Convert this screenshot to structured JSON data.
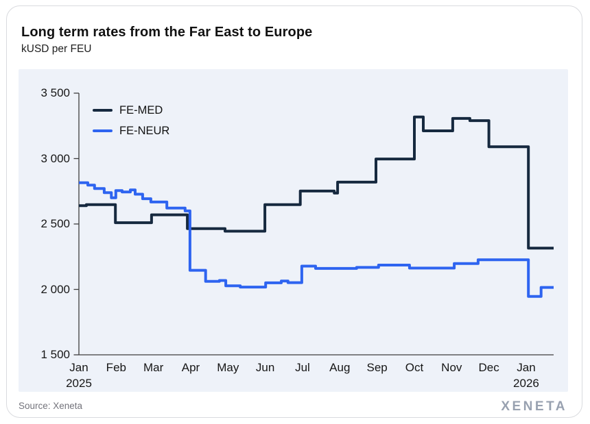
{
  "header": {
    "title": "Long term rates from the Far East to Europe",
    "subtitle": "kUSD per FEU"
  },
  "footer": {
    "source": "Source: Xeneta",
    "brand": "XENETA"
  },
  "colors": {
    "fe_med": "#16293f",
    "fe_neur": "#2e64f0",
    "panel_bg": "#eef2f9",
    "axis": "#3d3d3d",
    "card_border": "#d9dade",
    "brand_gray": "#98a1b0"
  },
  "chart_data": {
    "type": "line",
    "interpolation": "step-after",
    "title": "Long term rates from the Far East to Europe",
    "ylabel": "kUSD per FEU",
    "xlabel": "",
    "x_unit": "months since Jan 2025",
    "xlim": [
      0,
      12.73
    ],
    "ylim": [
      1500,
      3500
    ],
    "grid": false,
    "legend_position": "top-left",
    "x_tick_labels": [
      "Jan",
      "Feb",
      "Mar",
      "Apr",
      "May",
      "Jun",
      "Jul",
      "Aug",
      "Sep",
      "Oct",
      "Nov",
      "Dec",
      "Jan"
    ],
    "x_year_labels": [
      {
        "month_index": 0,
        "label": "2025"
      },
      {
        "month_index": 12,
        "label": "2026"
      }
    ],
    "y_ticks": [
      {
        "label": "3 500",
        "value": 3500
      },
      {
        "label": "3 000",
        "value": 3000
      },
      {
        "label": "2 500",
        "value": 2500
      },
      {
        "label": "2 000",
        "value": 2000
      },
      {
        "label": "1 500",
        "value": 1500
      }
    ],
    "series": [
      {
        "name": "FE-MED",
        "color": "#16293f",
        "points": [
          [
            0.0,
            2640
          ],
          [
            0.2,
            2648
          ],
          [
            0.98,
            2510
          ],
          [
            1.95,
            2570
          ],
          [
            2.91,
            2465
          ],
          [
            3.92,
            2445
          ],
          [
            4.99,
            2648
          ],
          [
            5.94,
            2752
          ],
          [
            6.85,
            2736
          ],
          [
            6.94,
            2820
          ],
          [
            7.97,
            2997
          ],
          [
            9.0,
            3318
          ],
          [
            9.24,
            3212
          ],
          [
            10.03,
            3307
          ],
          [
            10.49,
            3290
          ],
          [
            11.0,
            3090
          ],
          [
            12.06,
            2315
          ],
          [
            12.73,
            2315
          ]
        ]
      },
      {
        "name": "FE-NEUR",
        "color": "#2e64f0",
        "points": [
          [
            0.0,
            2815
          ],
          [
            0.24,
            2797
          ],
          [
            0.42,
            2771
          ],
          [
            0.68,
            2740
          ],
          [
            0.87,
            2700
          ],
          [
            0.99,
            2755
          ],
          [
            1.16,
            2745
          ],
          [
            1.38,
            2760
          ],
          [
            1.51,
            2728
          ],
          [
            1.71,
            2693
          ],
          [
            1.93,
            2668
          ],
          [
            2.36,
            2622
          ],
          [
            2.85,
            2600
          ],
          [
            2.98,
            2146
          ],
          [
            3.4,
            2062
          ],
          [
            3.77,
            2068
          ],
          [
            3.94,
            2028
          ],
          [
            4.33,
            2018
          ],
          [
            5.01,
            2050
          ],
          [
            5.43,
            2064
          ],
          [
            5.61,
            2052
          ],
          [
            5.98,
            2178
          ],
          [
            6.35,
            2160
          ],
          [
            7.45,
            2168
          ],
          [
            8.04,
            2186
          ],
          [
            8.87,
            2163
          ],
          [
            10.07,
            2198
          ],
          [
            10.71,
            2226
          ],
          [
            12.06,
            1946
          ],
          [
            12.4,
            2015
          ],
          [
            12.73,
            2015
          ]
        ]
      }
    ]
  }
}
